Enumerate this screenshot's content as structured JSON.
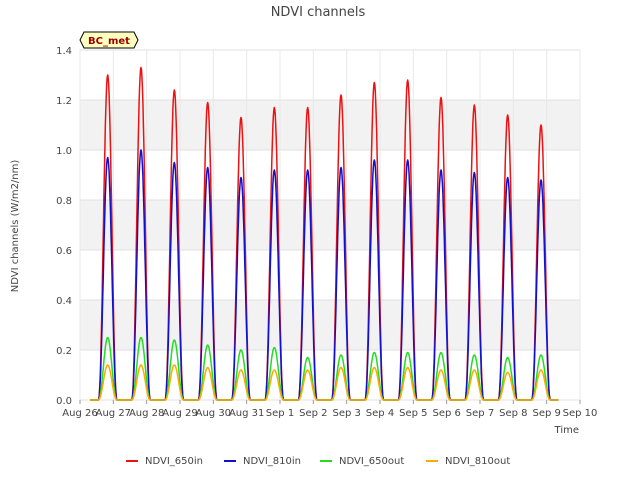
{
  "chart_data": {
    "type": "line",
    "title": "NDVI channels",
    "badge": "BC_met",
    "xlabel": "Time",
    "ylabel": "NDVI channels (W/m2/nm)",
    "ylim": [
      0,
      1.4
    ],
    "yticks": [
      "0.0",
      "0.2",
      "0.4",
      "0.6",
      "0.8",
      "1.0",
      "1.2",
      "1.4"
    ],
    "xticks": [
      "Aug 26",
      "Aug 27",
      "Aug 28",
      "Aug 29",
      "Aug 30",
      "Aug 31",
      "Sep 1",
      "Sep 2",
      "Sep 3",
      "Sep 4",
      "Sep 5",
      "Sep 6",
      "Sep 7",
      "Sep 8",
      "Sep 9",
      "Sep 10"
    ],
    "x_day_range": [
      0,
      15
    ],
    "peak_days": [
      0.83,
      1.83,
      2.83,
      3.83,
      4.83,
      5.83,
      6.83,
      7.83,
      8.83,
      9.83,
      10.83,
      11.83,
      12.83,
      13.83
    ],
    "peak_halfwidth_days": 0.28,
    "data_end_day": 14.35,
    "series": [
      {
        "name": "NDVI_650in",
        "color": "#ee1111",
        "peaks": [
          1.3,
          1.33,
          1.24,
          1.19,
          1.13,
          1.17,
          1.17,
          1.22,
          1.27,
          1.28,
          1.21,
          1.18,
          1.14,
          1.1
        ]
      },
      {
        "name": "NDVI_810in",
        "color": "#1111cc",
        "peaks": [
          0.97,
          1.0,
          0.95,
          0.93,
          0.89,
          0.92,
          0.92,
          0.93,
          0.96,
          0.96,
          0.92,
          0.91,
          0.89,
          0.88
        ]
      },
      {
        "name": "NDVI_650out",
        "color": "#22dd22",
        "peaks": [
          0.25,
          0.25,
          0.24,
          0.22,
          0.2,
          0.21,
          0.17,
          0.18,
          0.19,
          0.19,
          0.19,
          0.18,
          0.17,
          0.18
        ]
      },
      {
        "name": "NDVI_810out",
        "color": "#ffaa00",
        "peaks": [
          0.14,
          0.14,
          0.14,
          0.13,
          0.12,
          0.12,
          0.12,
          0.13,
          0.13,
          0.13,
          0.12,
          0.12,
          0.11,
          0.12
        ]
      }
    ]
  }
}
